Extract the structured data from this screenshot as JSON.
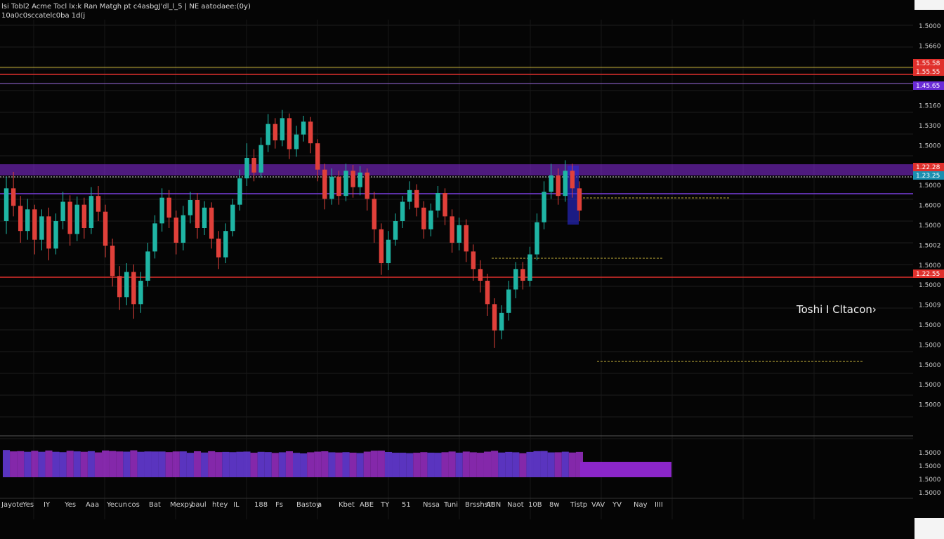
{
  "header": {
    "title": "lsi Tobl2 Acme Tocl lx:k Ran Matgh pt c4asbgJ'dl_l_5 | NE aatodaee:(0y)",
    "subtitle": "10a0c0sccatelc0ba 1d(j"
  },
  "annotation": "Toshi I Cltacon›",
  "colors": {
    "background": "#050505",
    "up": "#1fb5a4",
    "down": "#e0403a",
    "purple": "#8a2be2",
    "red_line": "#e0302c",
    "yellow_line": "#c8b23a"
  },
  "chart_data": {
    "type": "candlestick",
    "price_axis_labels": [
      "1.5000",
      "1.5660",
      "1.5580",
      "1.5600",
      "1.5160",
      "1.5300",
      "1.5000",
      "1.5000",
      "1.5000",
      "1.6000",
      "1.5000",
      "1.5002",
      "1.5000",
      "1.5000",
      "1.5009",
      "1.5000",
      "1.5000",
      "1.5000",
      "1.5000",
      "1.5000"
    ],
    "price_tags": [
      {
        "label": "1.55.58",
        "color": "#e0302c"
      },
      {
        "label": "1.55.55",
        "color": "#e0302c"
      },
      {
        "label": "1.45.65",
        "color": "#6a2bd8"
      },
      {
        "label": "1.22.28",
        "color": "#e0302c"
      },
      {
        "label": "1.23.25",
        "color": "#1a8fb0"
      },
      {
        "label": "1.22.55",
        "color": "#e0302c"
      }
    ],
    "time_axis_labels": [
      "Jayote",
      "Yes",
      "IY",
      "Yes",
      "Aaa",
      "Yecun",
      "cos",
      "Bat",
      "Mexpy",
      "baul",
      "htey",
      "IL",
      "188",
      "Fs",
      "Bastoy",
      "a",
      "Kbet",
      "ABE",
      "TY",
      "51",
      "Nssa",
      "Tuni",
      "Brsshstt",
      "ABN",
      "Naot",
      "10B",
      "8w",
      "Tistp",
      "VAV",
      "YV",
      "Nay",
      "IIII"
    ],
    "volume_axis_labels": [
      "1.5000",
      "1.5000",
      "1.5000",
      "1.5000"
    ],
    "candles": [
      [
        1.5262,
        1.5318,
        1.5338,
        1.524
      ],
      [
        1.5318,
        1.5288,
        1.5346,
        1.527
      ],
      [
        1.5288,
        1.5245,
        1.5305,
        1.5225
      ],
      [
        1.5245,
        1.5282,
        1.53,
        1.523
      ],
      [
        1.5282,
        1.523,
        1.529,
        1.5205
      ],
      [
        1.523,
        1.527,
        1.5282,
        1.5212
      ],
      [
        1.527,
        1.5215,
        1.5285,
        1.5195
      ],
      [
        1.5215,
        1.5262,
        1.5275,
        1.5205
      ],
      [
        1.5262,
        1.5295,
        1.5312,
        1.5248
      ],
      [
        1.5295,
        1.524,
        1.5306,
        1.522
      ],
      [
        1.524,
        1.529,
        1.5304,
        1.5228
      ],
      [
        1.529,
        1.525,
        1.5302,
        1.5232
      ],
      [
        1.525,
        1.5305,
        1.532,
        1.524
      ],
      [
        1.5305,
        1.5278,
        1.5322,
        1.5262
      ],
      [
        1.5278,
        1.522,
        1.529,
        1.52
      ],
      [
        1.522,
        1.5168,
        1.5232,
        1.515
      ],
      [
        1.5168,
        1.5132,
        1.5185,
        1.511
      ],
      [
        1.5132,
        1.5175,
        1.519,
        1.5118
      ],
      [
        1.5175,
        1.512,
        1.5188,
        1.5095
      ],
      [
        1.512,
        1.516,
        1.5175,
        1.5105
      ],
      [
        1.516,
        1.521,
        1.5225,
        1.515
      ],
      [
        1.521,
        1.5258,
        1.5272,
        1.5198
      ],
      [
        1.5258,
        1.5302,
        1.5318,
        1.5244
      ],
      [
        1.5302,
        1.5268,
        1.5315,
        1.525
      ],
      [
        1.5268,
        1.5225,
        1.528,
        1.5205
      ],
      [
        1.5225,
        1.5272,
        1.5288,
        1.5212
      ],
      [
        1.5272,
        1.5298,
        1.5312,
        1.5258
      ],
      [
        1.5298,
        1.525,
        1.531,
        1.5232
      ],
      [
        1.525,
        1.5285,
        1.5296,
        1.5238
      ],
      [
        1.5285,
        1.5232,
        1.5294,
        1.5215
      ],
      [
        1.5232,
        1.52,
        1.5245,
        1.518
      ],
      [
        1.52,
        1.5245,
        1.5258,
        1.519
      ],
      [
        1.5245,
        1.529,
        1.53,
        1.5236
      ],
      [
        1.529,
        1.5335,
        1.535,
        1.528
      ],
      [
        1.5335,
        1.537,
        1.5395,
        1.5322
      ],
      [
        1.537,
        1.5345,
        1.5385,
        1.533
      ],
      [
        1.5345,
        1.5392,
        1.5405,
        1.5336
      ],
      [
        1.5392,
        1.5428,
        1.5445,
        1.538
      ],
      [
        1.5428,
        1.54,
        1.5438,
        1.5386
      ],
      [
        1.54,
        1.5438,
        1.5452,
        1.539
      ],
      [
        1.5438,
        1.5385,
        1.5446,
        1.5368
      ],
      [
        1.5385,
        1.541,
        1.5425,
        1.5372
      ],
      [
        1.541,
        1.5432,
        1.5442,
        1.5398
      ],
      [
        1.5432,
        1.5395,
        1.544,
        1.5378
      ],
      [
        1.5395,
        1.535,
        1.5402,
        1.533
      ],
      [
        1.535,
        1.53,
        1.536,
        1.5282
      ],
      [
        1.53,
        1.5338,
        1.5352,
        1.529
      ],
      [
        1.5338,
        1.5305,
        1.5348,
        1.529
      ],
      [
        1.5305,
        1.5348,
        1.536,
        1.5296
      ],
      [
        1.5348,
        1.532,
        1.5358,
        1.5302
      ],
      [
        1.532,
        1.5345,
        1.5356,
        1.5306
      ],
      [
        1.5345,
        1.53,
        1.5352,
        1.528
      ],
      [
        1.53,
        1.5248,
        1.5312,
        1.5225
      ],
      [
        1.5248,
        1.519,
        1.5258,
        1.517
      ],
      [
        1.519,
        1.523,
        1.5245,
        1.5178
      ],
      [
        1.523,
        1.5262,
        1.5275,
        1.522
      ],
      [
        1.5262,
        1.5295,
        1.5305,
        1.525
      ],
      [
        1.5295,
        1.5315,
        1.533,
        1.5282
      ],
      [
        1.5315,
        1.5285,
        1.5325,
        1.527
      ],
      [
        1.5285,
        1.5248,
        1.5296,
        1.5232
      ],
      [
        1.5248,
        1.528,
        1.5292,
        1.5236
      ],
      [
        1.528,
        1.531,
        1.5322,
        1.5268
      ],
      [
        1.531,
        1.527,
        1.5318,
        1.5255
      ],
      [
        1.527,
        1.5225,
        1.5282,
        1.5208
      ],
      [
        1.5225,
        1.5255,
        1.5268,
        1.5212
      ],
      [
        1.5255,
        1.521,
        1.5265,
        1.5192
      ],
      [
        1.521,
        1.518,
        1.5222,
        1.516
      ],
      [
        1.518,
        1.516,
        1.5195,
        1.514
      ],
      [
        1.516,
        1.512,
        1.5172,
        1.51
      ],
      [
        1.512,
        1.5075,
        1.513,
        1.5045
      ],
      [
        1.5075,
        1.5105,
        1.5118,
        1.506
      ],
      [
        1.5105,
        1.5145,
        1.516,
        1.5092
      ],
      [
        1.5145,
        1.518,
        1.5192,
        1.513
      ],
      [
        1.518,
        1.516,
        1.5192,
        1.5145
      ],
      [
        1.516,
        1.5205,
        1.5218,
        1.515
      ],
      [
        1.5205,
        1.526,
        1.5275,
        1.5195
      ],
      [
        1.526,
        1.5312,
        1.533,
        1.5248
      ],
      [
        1.5312,
        1.534,
        1.536,
        1.53
      ],
      [
        1.534,
        1.5305,
        1.5352,
        1.529
      ],
      [
        1.5305,
        1.5348,
        1.5366,
        1.5295
      ],
      [
        1.5348,
        1.5318,
        1.536,
        1.5302
      ],
      [
        1.5318,
        1.528,
        1.533,
        1.5262
      ]
    ]
  }
}
